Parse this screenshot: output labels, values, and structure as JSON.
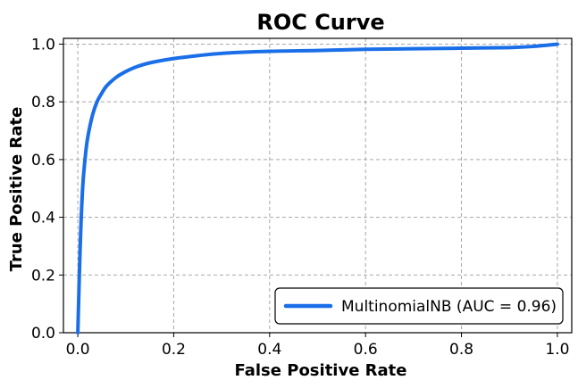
{
  "chart_data": {
    "type": "line",
    "title": "ROC Curve",
    "xlabel": "False Positive Rate",
    "ylabel": "True Positive Rate",
    "xlim": [
      -0.03,
      1.03
    ],
    "ylim": [
      0.0,
      1.02
    ],
    "xticks": [
      "0.0",
      "0.2",
      "0.4",
      "0.6",
      "0.8",
      "1.0"
    ],
    "yticks": [
      "0.0",
      "0.2",
      "0.4",
      "0.6",
      "0.8",
      "1.0"
    ],
    "grid": true,
    "legend_position": "lower-right",
    "series": [
      {
        "name": "MultinomialNB (AUC = 0.96)",
        "color": "#1a6fe8",
        "x": [
          0.0,
          0.005,
          0.01,
          0.015,
          0.02,
          0.03,
          0.04,
          0.05,
          0.06,
          0.08,
          0.1,
          0.12,
          0.15,
          0.2,
          0.25,
          0.3,
          0.4,
          0.5,
          0.6,
          0.7,
          0.8,
          0.9,
          0.95,
          1.0
        ],
        "y": [
          0.0,
          0.3,
          0.5,
          0.6,
          0.67,
          0.75,
          0.8,
          0.83,
          0.855,
          0.885,
          0.905,
          0.92,
          0.935,
          0.95,
          0.96,
          0.968,
          0.975,
          0.978,
          0.982,
          0.984,
          0.986,
          0.988,
          0.992,
          1.0
        ]
      }
    ]
  }
}
